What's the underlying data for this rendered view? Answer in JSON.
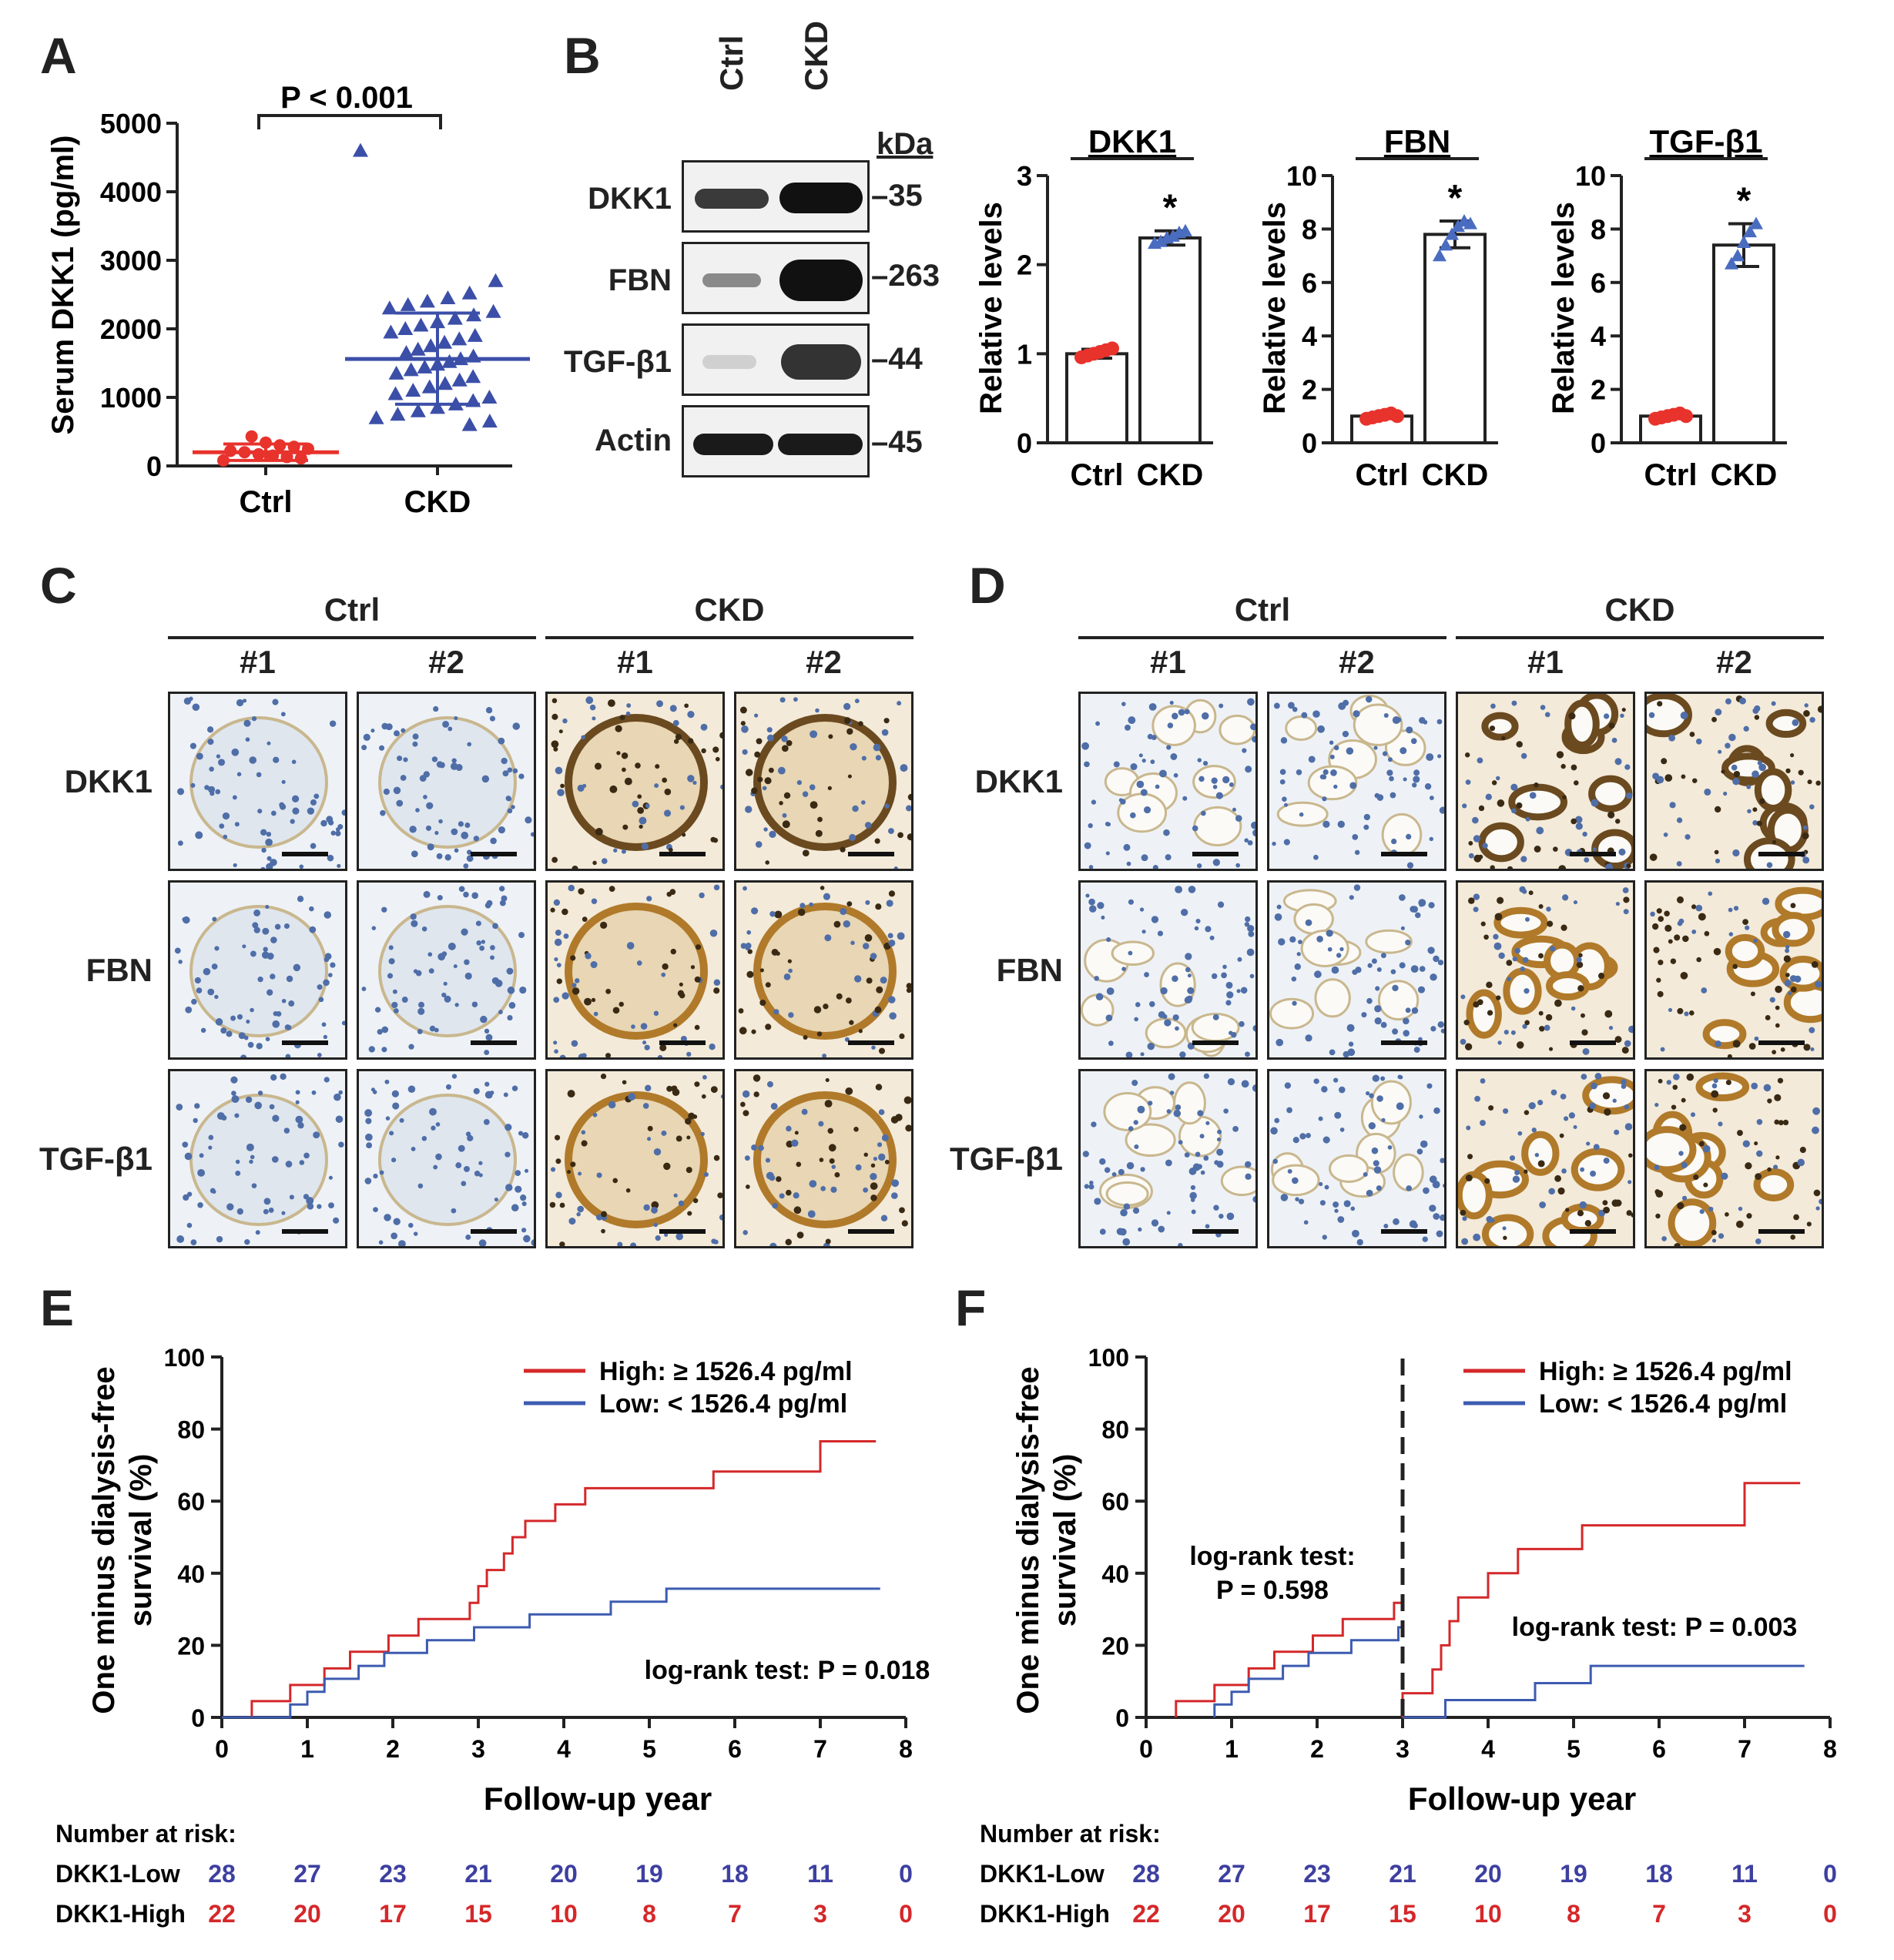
{
  "panels": {
    "a": "A",
    "b": "B",
    "c": "C",
    "d": "D",
    "e": "E",
    "f": "F"
  },
  "panel_a": {
    "y_label": "Serum DKK1 (pg/ml)",
    "p_value": "P < 0.001",
    "colors": {
      "ctrl": "#e8322c",
      "ckd": "#3b4fa8"
    }
  },
  "panel_b": {
    "lanes": [
      "Ctrl",
      "CKD"
    ],
    "kda_label": "kDa",
    "blots": [
      {
        "name": "DKK1",
        "kda": "35"
      },
      {
        "name": "FBN",
        "kda": "263"
      },
      {
        "name": "TGF-β1",
        "kda": "44"
      },
      {
        "name": "Actin",
        "kda": "45"
      }
    ],
    "asterisk": "*"
  },
  "panel_c": {
    "groups": [
      "Ctrl",
      "CKD"
    ],
    "samples": [
      "#1",
      "#2",
      "#1",
      "#2"
    ],
    "rows": [
      "DKK1",
      "FBN",
      "TGF-β1"
    ]
  },
  "panel_d": {
    "groups": [
      "Ctrl",
      "CKD"
    ],
    "samples": [
      "#1",
      "#2",
      "#1",
      "#2"
    ],
    "rows": [
      "DKK1",
      "FBN",
      "TGF-β1"
    ]
  },
  "survival": {
    "y_label_1": "One minus dialysis-free",
    "y_label_2": "survival (%)",
    "x_label": "Follow-up year",
    "legend_high": "High: ≥ 1526.4 pg/ml",
    "legend_low": "Low: < 1526.4 pg/ml",
    "colors": {
      "high": "#d4282a",
      "low": "#3d5bb0"
    },
    "risk_title": "Number at risk:",
    "risk_low_label": "DKK1-Low",
    "risk_high_label": "DKK1-High",
    "risk_low": [
      "28",
      "27",
      "23",
      "21",
      "20",
      "19",
      "18",
      "11",
      "0"
    ],
    "risk_high": [
      "22",
      "20",
      "17",
      "15",
      "10",
      "8",
      "7",
      "3",
      "0"
    ],
    "e_logrank": "log-rank test: P = 0.018",
    "f_logrank_left_1": "log-rank test:",
    "f_logrank_left_2": "P = 0.598",
    "f_logrank_right": "log-rank test: P = 0.003"
  },
  "chart_data": [
    {
      "type": "scatter",
      "panel": "A",
      "ylabel": "Serum DKK1 (pg/ml)",
      "categories": [
        "Ctrl",
        "CKD"
      ],
      "ylim": [
        0,
        5000
      ],
      "yticks": [
        0,
        1000,
        2000,
        3000,
        4000,
        5000
      ],
      "series": [
        {
          "name": "Ctrl",
          "mean": 200,
          "sd_low": 80,
          "sd_high": 320,
          "values": [
            80,
            110,
            130,
            150,
            170,
            200,
            220,
            250,
            280,
            300,
            340,
            430
          ]
        },
        {
          "name": "CKD",
          "mean": 1560,
          "sd_low": 900,
          "sd_high": 2230,
          "values": [
            4600,
            2700,
            2520,
            2450,
            2400,
            2350,
            2300,
            2250,
            2200,
            2150,
            2100,
            2050,
            2000,
            1950,
            1900,
            1850,
            1800,
            1750,
            1700,
            1650,
            1600,
            1560,
            1520,
            1480,
            1440,
            1400,
            1350,
            1300,
            1250,
            1200,
            1150,
            1100,
            1050,
            1000,
            950,
            900,
            850,
            800,
            750,
            700,
            650,
            600
          ]
        }
      ]
    },
    {
      "type": "bar",
      "panel": "B",
      "title": "DKK1",
      "ylabel": "Relative levels",
      "categories": [
        "Ctrl",
        "CKD"
      ],
      "values": [
        1.0,
        2.3
      ],
      "errors": [
        0.05,
        0.08
      ],
      "ylim": [
        0,
        3
      ],
      "yticks": [
        0,
        1,
        2,
        3
      ],
      "points": [
        [
          0.96,
          0.98,
          1.0,
          1.02,
          1.04,
          1.06
        ],
        [
          2.24,
          2.26,
          2.3,
          2.32,
          2.36,
          2.38
        ]
      ]
    },
    {
      "type": "bar",
      "panel": "B",
      "title": "FBN",
      "ylabel": "Relative levels",
      "categories": [
        "Ctrl",
        "CKD"
      ],
      "values": [
        1.0,
        7.8
      ],
      "errors": [
        0.08,
        0.5
      ],
      "ylim": [
        0,
        10
      ],
      "yticks": [
        0,
        2,
        4,
        6,
        8,
        10
      ],
      "points": [
        [
          0.9,
          0.95,
          1.0,
          1.05,
          1.1,
          1.0
        ],
        [
          7.0,
          7.4,
          7.8,
          8.1,
          8.3,
          8.2
        ]
      ]
    },
    {
      "type": "bar",
      "panel": "B",
      "title": "TGF-β1",
      "ylabel": "Relative levels",
      "categories": [
        "Ctrl",
        "CKD"
      ],
      "values": [
        1.0,
        7.4
      ],
      "errors": [
        0.08,
        0.8
      ],
      "ylim": [
        0,
        10
      ],
      "yticks": [
        0,
        2,
        4,
        6,
        8,
        10
      ],
      "points": [
        [
          0.9,
          0.95,
          1.0,
          1.05,
          1.1,
          1.0
        ],
        [
          6.7,
          7.0,
          7.5,
          7.9,
          8.2
        ]
      ]
    },
    {
      "type": "line",
      "panel": "E",
      "xlabel": "Follow-up year",
      "ylabel": "One minus dialysis-free survival (%)",
      "xlim": [
        0,
        8
      ],
      "ylim": [
        0,
        100
      ],
      "xticks": [
        0,
        1,
        2,
        3,
        4,
        5,
        6,
        7,
        8
      ],
      "yticks": [
        0,
        20,
        40,
        60,
        80,
        100
      ],
      "series": [
        {
          "name": "High: ≥ 1526.4 pg/ml",
          "x": [
            0,
            0.35,
            0.35,
            0.8,
            0.8,
            1.2,
            1.2,
            1.5,
            1.5,
            1.95,
            1.95,
            2.3,
            2.3,
            2.9,
            2.9,
            3.0,
            3.0,
            3.1,
            3.1,
            3.3,
            3.3,
            3.4,
            3.4,
            3.55,
            3.55,
            3.65,
            3.65,
            3.9,
            3.9,
            4.25,
            4.25,
            4.65,
            4.65,
            5.1,
            5.1,
            5.75,
            5.75,
            6.0,
            6.0,
            7.0,
            7.0,
            7.65
          ],
          "y": [
            0,
            0,
            4.5,
            4.5,
            9,
            9,
            13.6,
            13.6,
            18.2,
            18.2,
            22.7,
            22.7,
            27.3,
            27.3,
            31.8,
            31.8,
            36.4,
            36.4,
            40.9,
            40.9,
            45.5,
            45.5,
            50,
            50,
            54.5,
            54.5,
            54.5,
            54.5,
            59.1,
            59.1,
            63.6,
            63.6,
            63.6,
            63.6,
            63.6,
            63.6,
            68.2,
            68.2,
            68.2,
            68.2,
            76.6,
            76.6
          ]
        },
        {
          "name": "Low: < 1526.4 pg/ml",
          "x": [
            0,
            0.8,
            0.8,
            1.0,
            1.0,
            1.2,
            1.2,
            1.6,
            1.6,
            1.9,
            1.9,
            2.4,
            2.4,
            2.95,
            2.95,
            3.6,
            3.6,
            4.55,
            4.55,
            5.2,
            5.2,
            7.7
          ],
          "y": [
            0,
            0,
            3.6,
            3.6,
            7.1,
            7.1,
            10.7,
            10.7,
            14.3,
            14.3,
            17.9,
            17.9,
            21.4,
            21.4,
            25,
            25,
            28.6,
            28.6,
            32.1,
            32.1,
            35.7,
            35.7
          ]
        }
      ]
    },
    {
      "type": "line",
      "panel": "F",
      "xlabel": "Follow-up year",
      "ylabel": "One minus dialysis-free survival (%)",
      "xlim": [
        0,
        8
      ],
      "ylim": [
        0,
        100
      ],
      "xticks": [
        0,
        1,
        2,
        3,
        4,
        5,
        6,
        7,
        8
      ],
      "yticks": [
        0,
        20,
        40,
        60,
        80,
        100
      ],
      "landmark_x": 3,
      "series": [
        {
          "name": "High: ≥ 1526.4 pg/ml",
          "segments": [
            {
              "x": [
                0.35,
                0.35,
                0.8,
                0.8,
                1.2,
                1.2,
                1.5,
                1.5,
                1.95,
                1.95,
                2.3,
                2.3,
                2.9,
                2.9,
                3.0
              ],
              "y": [
                0,
                4.5,
                4.5,
                9,
                9,
                13.6,
                13.6,
                18.2,
                18.2,
                22.7,
                22.7,
                27.3,
                27.3,
                31.8,
                31.8
              ]
            },
            {
              "x": [
                3.0,
                3.0,
                3.35,
                3.35,
                3.45,
                3.45,
                3.55,
                3.55,
                3.65,
                3.65,
                4.0,
                4.0,
                4.35,
                4.35,
                5.1,
                5.1,
                5.75,
                5.75,
                7.0,
                7.0,
                7.65
              ],
              "y": [
                0,
                6.7,
                6.7,
                13.3,
                13.3,
                20,
                20,
                26.7,
                26.7,
                33.3,
                33.3,
                40,
                40,
                46.7,
                46.7,
                53.3,
                53.3,
                53.3,
                53.3,
                65,
                65
              ]
            }
          ]
        },
        {
          "name": "Low: < 1526.4 pg/ml",
          "segments": [
            {
              "x": [
                0.8,
                0.8,
                1.0,
                1.0,
                1.2,
                1.2,
                1.6,
                1.6,
                1.9,
                1.9,
                2.4,
                2.4,
                2.95,
                2.95,
                3.0
              ],
              "y": [
                0,
                3.6,
                3.6,
                7.1,
                7.1,
                10.7,
                10.7,
                14.3,
                14.3,
                17.9,
                17.9,
                21.4,
                21.4,
                25,
                25
              ]
            },
            {
              "x": [
                3.0,
                3.5,
                3.5,
                4.55,
                4.55,
                5.2,
                5.2,
                7.7
              ],
              "y": [
                0,
                0,
                4.8,
                4.8,
                9.5,
                9.5,
                14.3,
                14.3
              ]
            }
          ]
        }
      ]
    }
  ]
}
